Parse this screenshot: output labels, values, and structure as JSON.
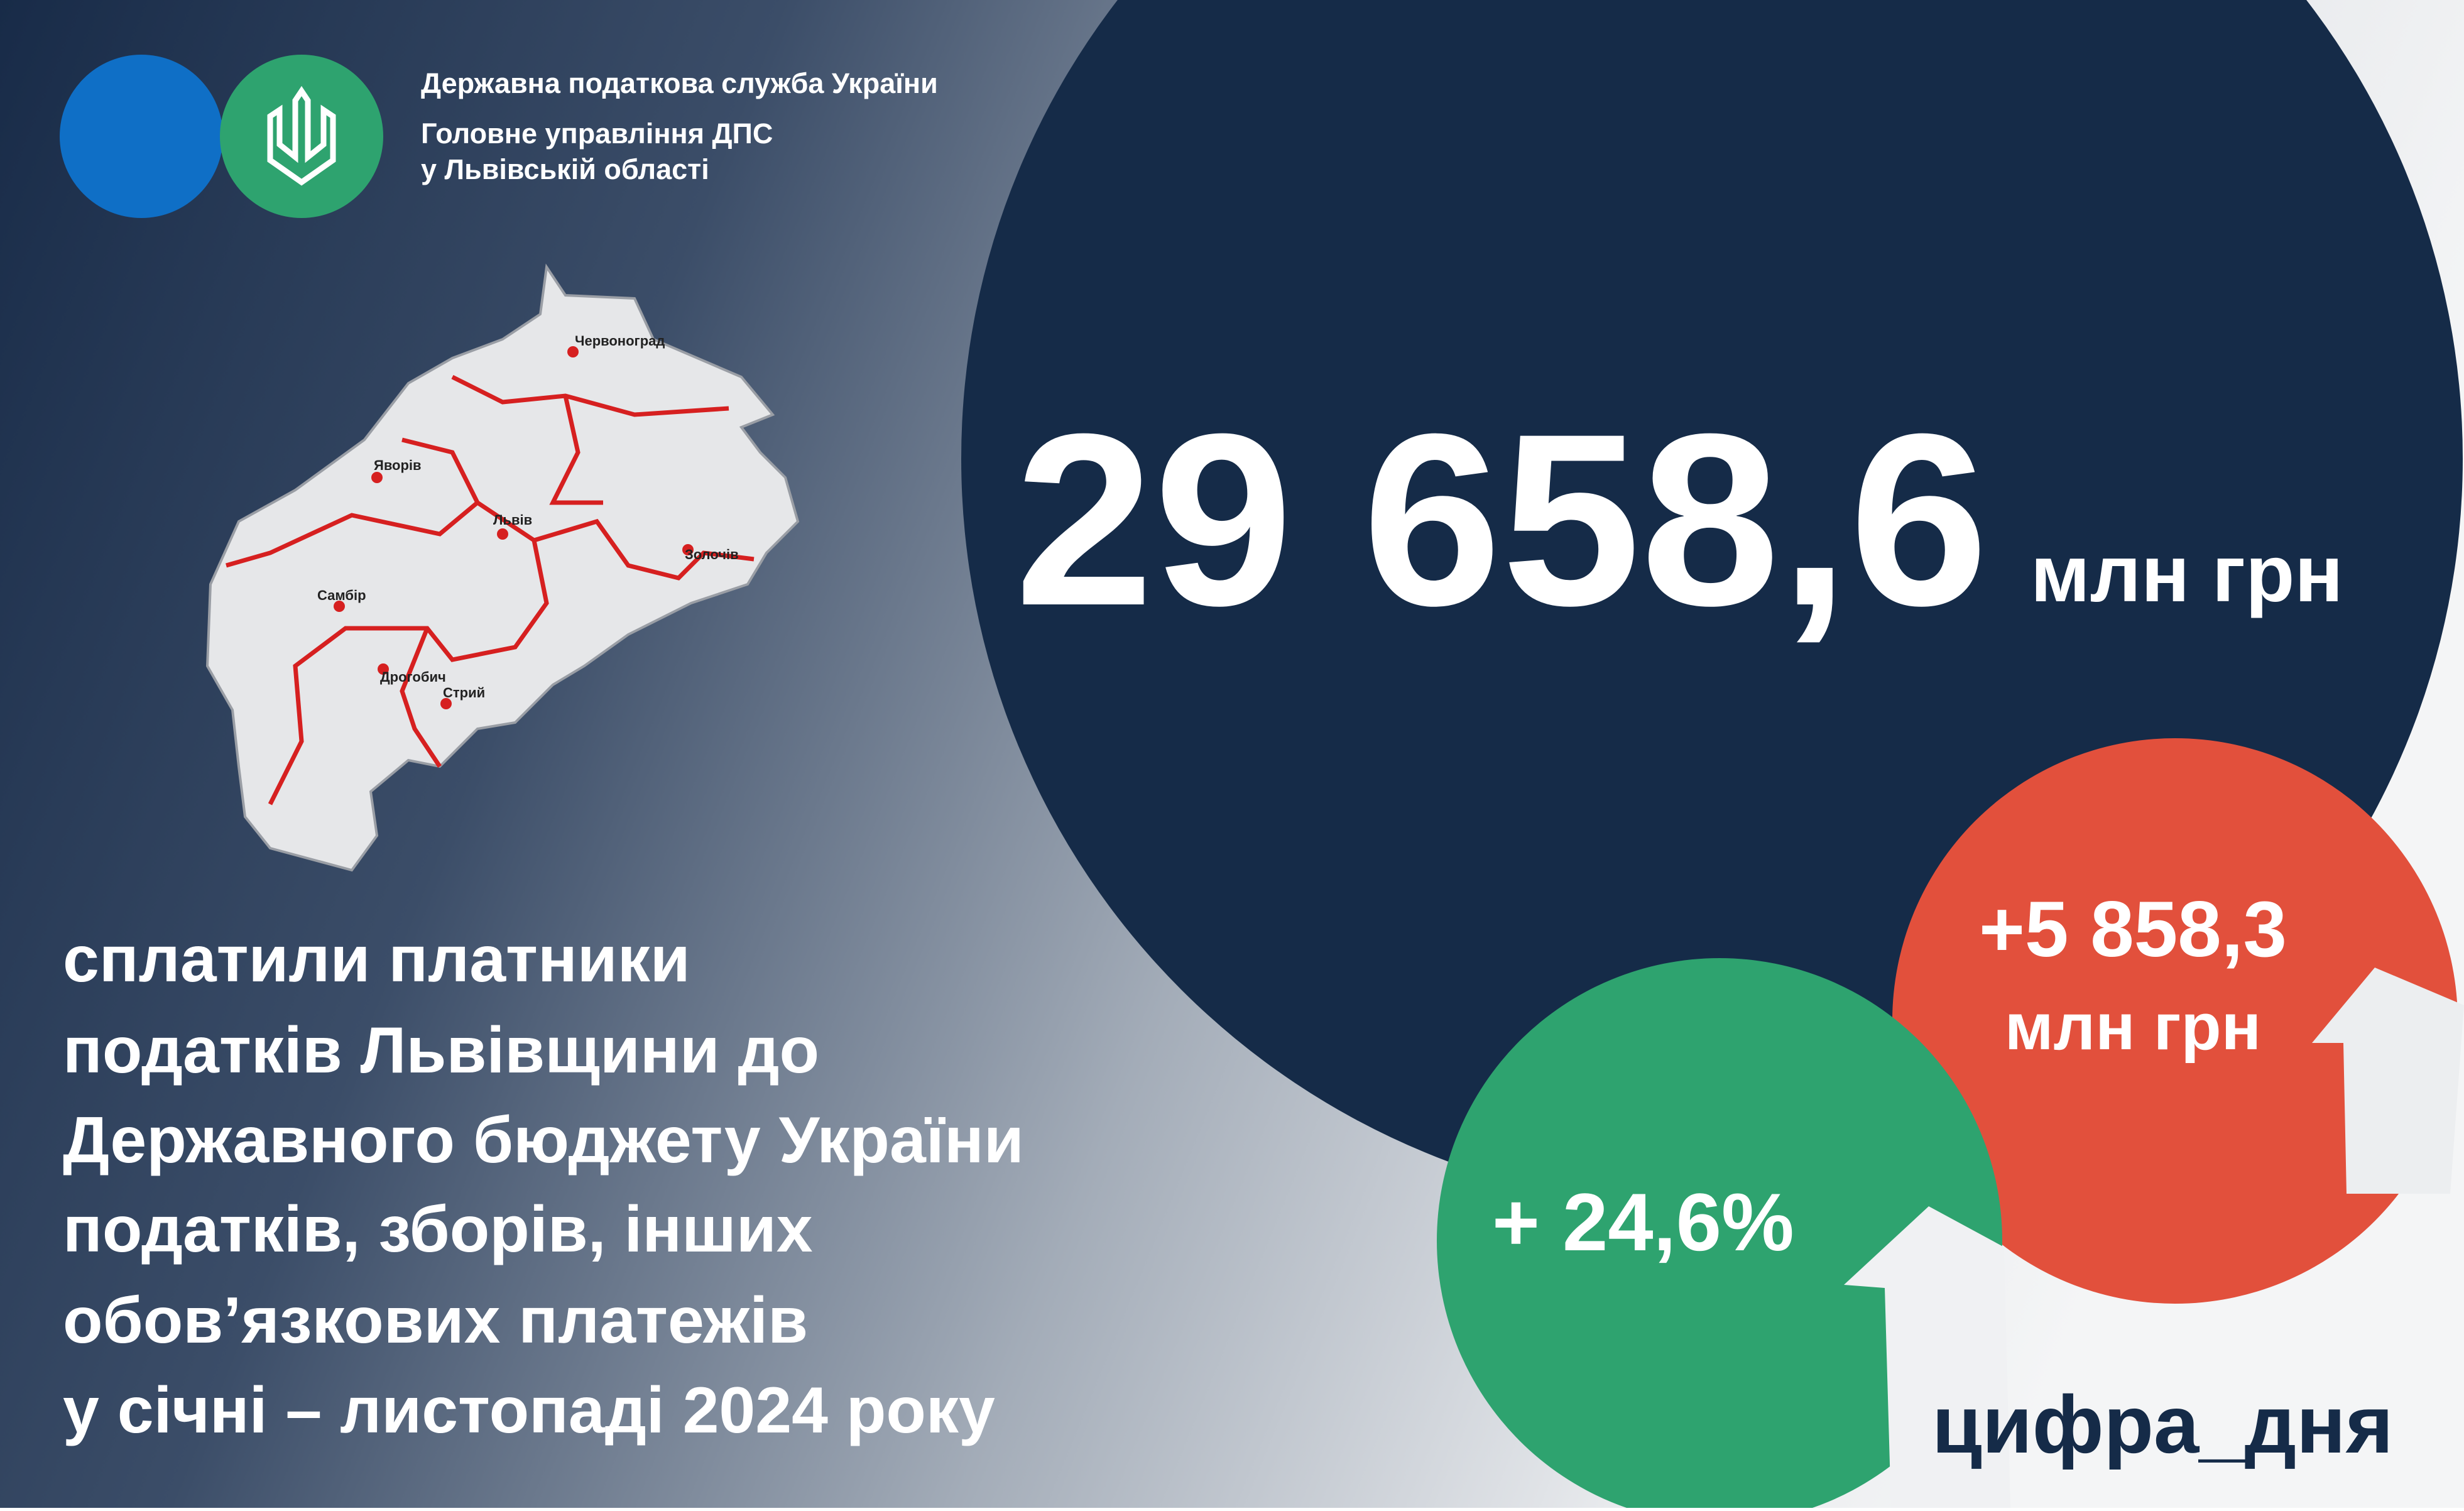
{
  "header": {
    "lines": [
      "Державна податкова служба України",
      "Головне управління ДПС",
      "у Львівській області"
    ]
  },
  "main_figure": {
    "value": "29 658,6",
    "unit": "млн грн"
  },
  "increase_amount": {
    "value": "+5 858,3",
    "unit": "млн грн"
  },
  "increase_percent": {
    "value": "+ 24,6%"
  },
  "description": [
    "сплатили платники",
    "податків Львівщини до",
    "Державного бюджету України",
    "податків, зборів, інших",
    "обов’язкових платежів",
    "у січні – листопаді 2024 року"
  ],
  "hashtag": "цифра_дня",
  "map": {
    "cities": [
      "Червоноград",
      "Яворів",
      "Львів",
      "Золочів",
      "Самбір",
      "Дрогобич",
      "Стрий"
    ]
  }
}
